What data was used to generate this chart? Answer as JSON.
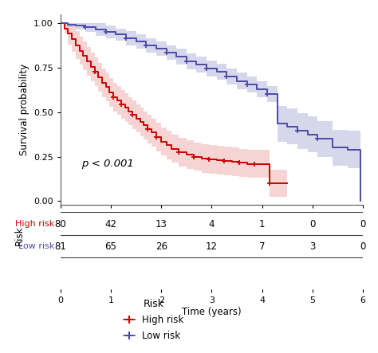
{
  "xlabel": "Time (years)",
  "ylabel": "Survival probability",
  "pvalue_text": "p < 0.001",
  "xlim": [
    0,
    6
  ],
  "ylim": [
    -0.02,
    1.05
  ],
  "xticks": [
    0,
    1,
    2,
    3,
    4,
    5,
    6
  ],
  "yticks": [
    0.0,
    0.25,
    0.5,
    0.75,
    1.0
  ],
  "high_risk_color": "#CC0000",
  "low_risk_color": "#4B4BA8",
  "high_risk_fill": "#E89090",
  "low_risk_fill": "#9898CC",
  "risk_table_times": [
    0,
    1,
    2,
    3,
    4,
    5,
    6
  ],
  "risk_table_high": [
    80,
    42,
    13,
    4,
    1,
    0,
    0
  ],
  "risk_table_low": [
    81,
    65,
    26,
    12,
    7,
    3,
    0
  ],
  "legend_title": "Risk",
  "legend_high": "High risk",
  "legend_low": "Low risk",
  "high_risk_times": [
    0,
    0.08,
    0.15,
    0.22,
    0.3,
    0.38,
    0.45,
    0.52,
    0.6,
    0.68,
    0.75,
    0.82,
    0.9,
    0.97,
    1.05,
    1.12,
    1.2,
    1.28,
    1.35,
    1.42,
    1.5,
    1.58,
    1.65,
    1.72,
    1.8,
    1.9,
    2.0,
    2.1,
    2.2,
    2.35,
    2.5,
    2.65,
    2.8,
    2.95,
    3.1,
    3.25,
    3.4,
    3.55,
    3.7,
    3.85,
    4.0,
    4.15,
    4.5
  ],
  "high_risk_surv": [
    1.0,
    0.97,
    0.94,
    0.91,
    0.875,
    0.845,
    0.815,
    0.785,
    0.755,
    0.725,
    0.695,
    0.665,
    0.64,
    0.61,
    0.585,
    0.565,
    0.545,
    0.525,
    0.505,
    0.485,
    0.465,
    0.445,
    0.425,
    0.405,
    0.385,
    0.36,
    0.335,
    0.315,
    0.295,
    0.275,
    0.26,
    0.25,
    0.24,
    0.235,
    0.23,
    0.225,
    0.22,
    0.215,
    0.21,
    0.21,
    0.21,
    0.1,
    0.1
  ],
  "high_risk_ci_upper": [
    1.0,
    1.0,
    1.0,
    0.98,
    0.955,
    0.925,
    0.895,
    0.865,
    0.835,
    0.805,
    0.775,
    0.745,
    0.72,
    0.69,
    0.665,
    0.645,
    0.625,
    0.605,
    0.585,
    0.565,
    0.545,
    0.525,
    0.505,
    0.485,
    0.465,
    0.44,
    0.415,
    0.395,
    0.375,
    0.355,
    0.34,
    0.33,
    0.32,
    0.315,
    0.31,
    0.305,
    0.3,
    0.295,
    0.29,
    0.29,
    0.29,
    0.175,
    0.175
  ],
  "high_risk_ci_lower": [
    1.0,
    0.94,
    0.88,
    0.84,
    0.8,
    0.765,
    0.735,
    0.705,
    0.675,
    0.645,
    0.615,
    0.585,
    0.56,
    0.53,
    0.505,
    0.485,
    0.465,
    0.445,
    0.425,
    0.405,
    0.385,
    0.365,
    0.345,
    0.325,
    0.305,
    0.28,
    0.255,
    0.235,
    0.215,
    0.195,
    0.18,
    0.17,
    0.16,
    0.155,
    0.15,
    0.145,
    0.14,
    0.135,
    0.13,
    0.13,
    0.13,
    0.025,
    0.025
  ],
  "low_risk_times": [
    0,
    0.15,
    0.3,
    0.5,
    0.7,
    0.9,
    1.1,
    1.3,
    1.5,
    1.7,
    1.9,
    2.1,
    2.3,
    2.5,
    2.7,
    2.9,
    3.1,
    3.3,
    3.5,
    3.7,
    3.9,
    4.1,
    4.3,
    4.5,
    4.7,
    4.9,
    5.1,
    5.4,
    5.7,
    5.95
  ],
  "low_risk_surv": [
    1.0,
    0.99,
    0.985,
    0.975,
    0.965,
    0.95,
    0.935,
    0.915,
    0.895,
    0.875,
    0.855,
    0.835,
    0.81,
    0.785,
    0.765,
    0.745,
    0.725,
    0.7,
    0.675,
    0.655,
    0.63,
    0.6,
    0.435,
    0.42,
    0.395,
    0.375,
    0.35,
    0.3,
    0.29,
    0.0
  ],
  "low_risk_ci_upper": [
    1.0,
    1.0,
    1.0,
    1.0,
    1.0,
    0.985,
    0.97,
    0.955,
    0.935,
    0.915,
    0.895,
    0.875,
    0.855,
    0.83,
    0.81,
    0.79,
    0.77,
    0.745,
    0.72,
    0.7,
    0.675,
    0.645,
    0.535,
    0.52,
    0.495,
    0.475,
    0.45,
    0.4,
    0.395,
    0.1
  ],
  "low_risk_ci_lower": [
    1.0,
    0.975,
    0.965,
    0.95,
    0.93,
    0.915,
    0.9,
    0.875,
    0.855,
    0.835,
    0.815,
    0.795,
    0.765,
    0.74,
    0.72,
    0.7,
    0.68,
    0.655,
    0.63,
    0.61,
    0.585,
    0.555,
    0.335,
    0.32,
    0.295,
    0.275,
    0.25,
    0.2,
    0.185,
    0.0
  ],
  "high_risk_censor_times": [
    0.68,
    1.05,
    1.2,
    1.42,
    1.72,
    1.9,
    2.35,
    2.65,
    2.95,
    3.25,
    3.55,
    3.85,
    4.15
  ],
  "high_risk_censor_surv": [
    0.725,
    0.585,
    0.545,
    0.485,
    0.405,
    0.36,
    0.275,
    0.25,
    0.235,
    0.225,
    0.215,
    0.21,
    0.1
  ],
  "low_risk_censor_times": [
    0.5,
    0.9,
    1.3,
    1.7,
    2.1,
    2.5,
    2.9,
    3.3,
    3.7,
    4.1,
    4.7,
    5.1
  ],
  "low_risk_censor_surv": [
    0.975,
    0.95,
    0.915,
    0.875,
    0.835,
    0.785,
    0.745,
    0.7,
    0.655,
    0.6,
    0.395,
    0.35
  ],
  "bg_color": "#ffffff",
  "spine_color": "#555555"
}
